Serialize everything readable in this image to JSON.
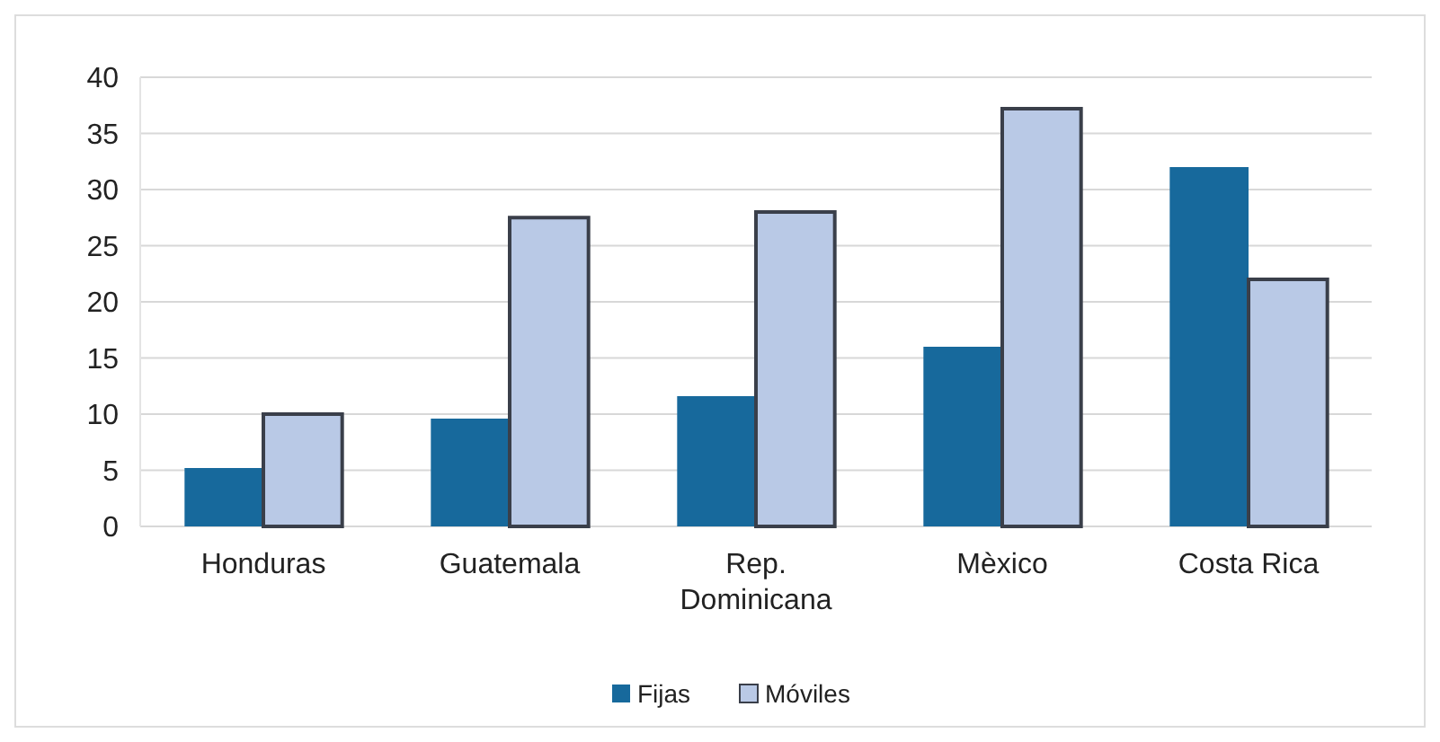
{
  "chart_data": {
    "type": "bar",
    "categories": [
      "Honduras",
      "Guatemala",
      "Rep. Dominicana",
      "Mèxico",
      "Costa Rica"
    ],
    "series": [
      {
        "name": "Fijas",
        "color": "#17699c",
        "values": [
          5.2,
          9.6,
          11.6,
          16,
          32
        ]
      },
      {
        "name": "Móviles",
        "color": "#b9c9e6",
        "values": [
          10,
          27.5,
          28,
          37.2,
          22
        ]
      }
    ],
    "ylim": [
      0,
      40
    ],
    "yticks": [
      0,
      5,
      10,
      15,
      20,
      25,
      30,
      35,
      40
    ],
    "grid": "y",
    "legend": "bottom"
  }
}
